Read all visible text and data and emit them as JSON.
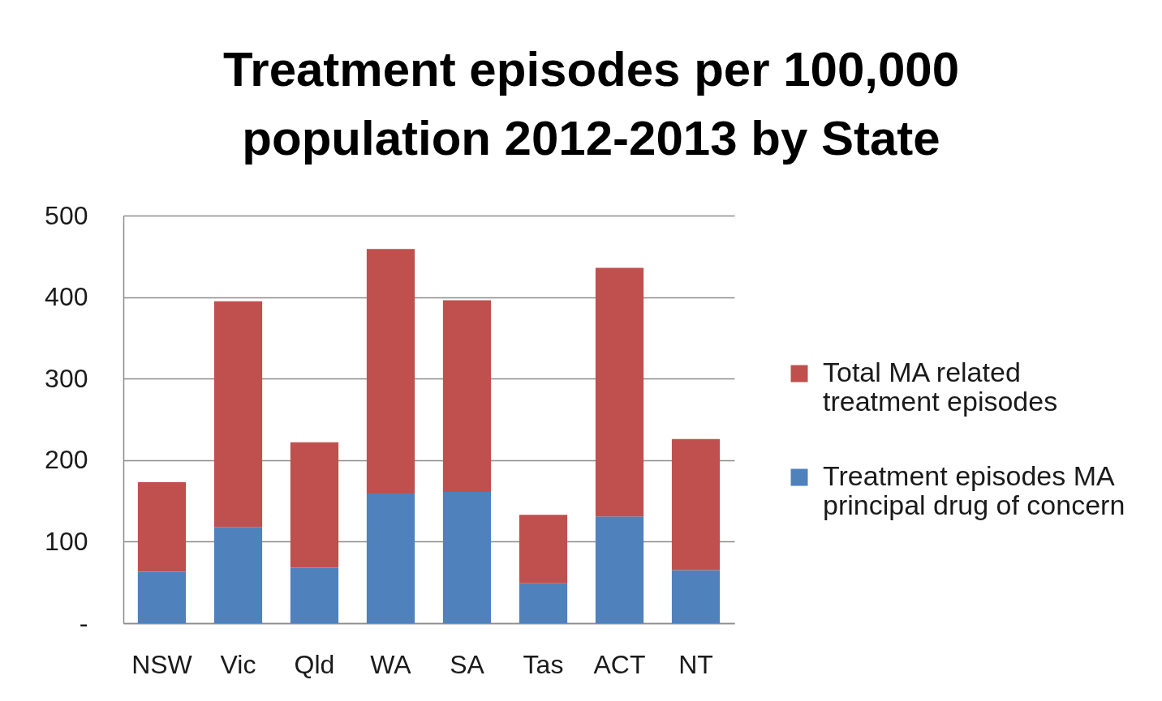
{
  "chart_data": {
    "type": "bar",
    "title": "Treatment episodes per 100,000 population 2012-2013 by State",
    "categories": [
      "NSW",
      "Vic",
      "Qld",
      "WA",
      "SA",
      "Tas",
      "ACT",
      "NT"
    ],
    "series": [
      {
        "name": "Treatment episodes MA principal drug of concern",
        "color": "#4f81bd",
        "values": [
          63,
          118,
          68,
          159,
          161,
          49,
          131,
          65
        ]
      },
      {
        "name": "Total MA related treatment episodes",
        "color": "#c0504d",
        "values": [
          110,
          277,
          154,
          300,
          235,
          84,
          305,
          161
        ]
      }
    ],
    "stacked": true,
    "ylim": [
      0,
      500
    ],
    "yticks": [
      {
        "value": 0,
        "label": "-"
      },
      100,
      200,
      300,
      400,
      500
    ],
    "grid": "y",
    "legend": "right"
  }
}
